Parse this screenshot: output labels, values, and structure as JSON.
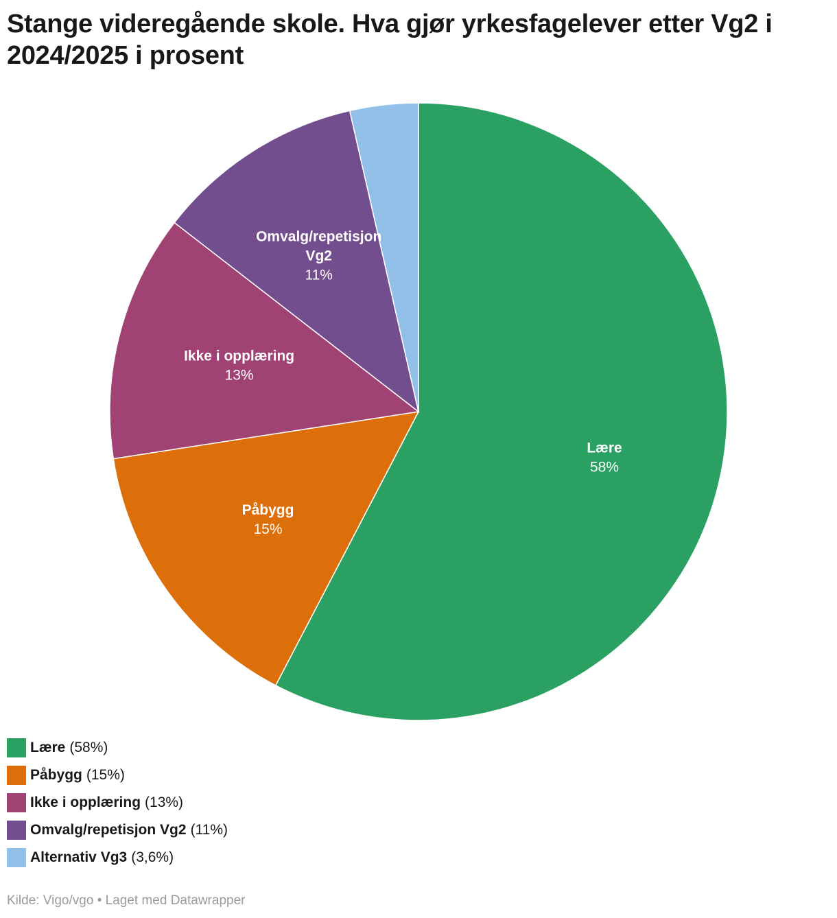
{
  "title": "Stange videregående skole. Hva gjør yrkesfagelever etter Vg2 i 2024/2025 i prosent",
  "chart_data": {
    "type": "pie",
    "title": "Stange videregående skole. Hva gjør yrkesfagelever etter Vg2 i 2024/2025 i prosent",
    "slices": [
      {
        "label": "Lære",
        "label_lines": [
          "Lære"
        ],
        "value": 58,
        "display": "58%",
        "legend_display": "(58%)",
        "color": "#2aa063",
        "show_label": true
      },
      {
        "label": "Påbygg",
        "label_lines": [
          "Påbygg"
        ],
        "value": 15,
        "display": "15%",
        "legend_display": "(15%)",
        "color": "#dd6f0a",
        "show_label": true
      },
      {
        "label": "Ikke i opplæring",
        "label_lines": [
          "Ikke i opplæring"
        ],
        "value": 13,
        "display": "13%",
        "legend_display": "(13%)",
        "color": "#a04273",
        "show_label": true
      },
      {
        "label": "Omvalg/repetisjon Vg2",
        "label_lines": [
          "Omvalg/repetisjon",
          "Vg2"
        ],
        "value": 11,
        "display": "11%",
        "legend_display": "(11%)",
        "color": "#724e8f",
        "show_label": true
      },
      {
        "label": "Alternativ Vg3",
        "label_lines": [
          "Alternativ Vg3"
        ],
        "value": 3.6,
        "display": "3,6%",
        "legend_display": "(3,6%)",
        "color": "#93c0e8",
        "show_label": false
      }
    ],
    "start": "top",
    "direction": "clockwise",
    "legend_position": "bottom-left"
  },
  "footer": {
    "source": "Kilde: Vigo/vgo",
    "separator": "•",
    "credit": "Laget med Datawrapper"
  }
}
